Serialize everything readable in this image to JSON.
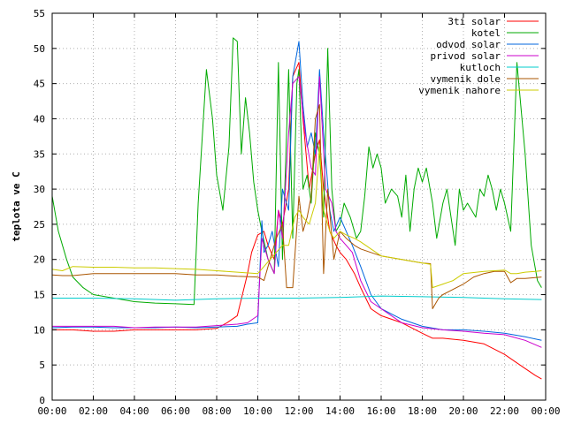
{
  "chart_data": {
    "type": "line",
    "ylabel": "teplota ve C",
    "xlim": [
      0,
      24
    ],
    "ylim": [
      0,
      55
    ],
    "x_ticks": [
      0,
      2,
      4,
      6,
      8,
      10,
      12,
      14,
      16,
      18,
      20,
      22,
      24
    ],
    "x_tick_labels": [
      "00:00",
      "02:00",
      "04:00",
      "06:00",
      "08:00",
      "10:00",
      "12:00",
      "14:00",
      "16:00",
      "18:00",
      "20:00",
      "22:00",
      "00:00"
    ],
    "y_ticks": [
      0,
      5,
      10,
      15,
      20,
      25,
      30,
      35,
      40,
      45,
      50,
      55
    ],
    "y_tick_labels": [
      "0",
      "5",
      "10",
      "15",
      "20",
      "25",
      "30",
      "35",
      "40",
      "45",
      "50",
      "55"
    ],
    "grid": true,
    "legend_position": "top-right",
    "series": [
      {
        "name": "3ti solar",
        "color": "#ff0000",
        "x": [
          0,
          1,
          2,
          3,
          4,
          5,
          6,
          7,
          8,
          8.5,
          9,
          9.5,
          9.7,
          10,
          10.3,
          10.5,
          10.8,
          11,
          11.2,
          11.5,
          11.7,
          12,
          12.2,
          12.5,
          12.8,
          13,
          13.2,
          13.5,
          13.8,
          14,
          14.3,
          14.7,
          15,
          15.5,
          16,
          17,
          18,
          18.5,
          19,
          20,
          21,
          22,
          22.5,
          23,
          23.5,
          23.8
        ],
        "y": [
          10,
          10,
          9.8,
          9.8,
          10,
          10,
          10,
          10,
          10.2,
          11,
          12,
          18,
          21,
          23.5,
          24,
          22,
          20,
          27,
          25,
          30,
          46,
          48,
          40,
          30,
          35,
          37,
          30,
          24,
          22,
          21,
          20,
          18,
          16,
          13,
          12,
          11,
          9.5,
          8.8,
          8.8,
          8.5,
          8,
          6.5,
          5.5,
          4.5,
          3.5,
          3
        ]
      },
      {
        "name": "kotel",
        "color": "#00aa00",
        "x": [
          0,
          0.3,
          0.7,
          1,
          1.5,
          2,
          3,
          4,
          5,
          6,
          6.9,
          7.1,
          7.5,
          7.8,
          8,
          8.3,
          8.6,
          8.8,
          9,
          9.2,
          9.4,
          9.6,
          9.8,
          10,
          10.2,
          10.5,
          10.8,
          11,
          11.2,
          11.5,
          11.7,
          11.9,
          12,
          12.2,
          12.4,
          12.6,
          12.8,
          13,
          13.2,
          13.4,
          13.6,
          13.8,
          14,
          14.2,
          14.5,
          14.8,
          15,
          15.2,
          15.4,
          15.6,
          15.8,
          16,
          16.2,
          16.5,
          16.8,
          17,
          17.2,
          17.4,
          17.6,
          17.8,
          18,
          18.2,
          18.5,
          18.7,
          19,
          19.2,
          19.4,
          19.6,
          19.8,
          20,
          20.2,
          20.4,
          20.6,
          20.8,
          21,
          21.2,
          21.4,
          21.6,
          21.8,
          22,
          22.3,
          22.6,
          23,
          23.3,
          23.6,
          23.8
        ],
        "y": [
          29,
          24,
          20,
          17.5,
          16,
          15,
          14.5,
          14,
          13.8,
          13.7,
          13.6,
          28,
          47,
          40,
          32,
          27,
          36,
          51.5,
          51,
          35,
          43,
          38,
          31,
          27,
          24,
          20,
          18,
          48,
          20,
          47,
          23,
          45,
          47,
          30,
          32,
          28,
          38,
          35,
          26,
          50,
          30,
          24,
          25,
          28,
          26,
          23,
          24,
          29,
          36,
          33,
          35,
          33,
          28,
          30,
          29,
          26,
          32,
          24,
          30,
          33,
          31,
          33,
          28,
          23,
          28,
          30,
          26,
          22,
          30,
          27,
          28,
          27,
          26,
          30,
          29,
          32,
          30,
          27,
          30,
          28,
          24,
          48,
          35,
          22,
          17,
          16
        ]
      },
      {
        "name": "odvod solar",
        "color": "#0066dd",
        "x": [
          0,
          1,
          2,
          3,
          4,
          5,
          6,
          7,
          8,
          9,
          9.5,
          10,
          10.2,
          10.3,
          10.5,
          10.7,
          11,
          11.2,
          11.5,
          11.7,
          12,
          12.2,
          12.4,
          12.6,
          12.8,
          13,
          13.2,
          13.5,
          13.7,
          14,
          14.3,
          14.6,
          15,
          15.5,
          16,
          17,
          18,
          19,
          20,
          21,
          22,
          23,
          23.8
        ],
        "y": [
          10.3,
          10.4,
          10.4,
          10.3,
          10.3,
          10.3,
          10.4,
          10.3,
          10.4,
          10.5,
          10.8,
          11,
          25.5,
          21,
          22,
          24,
          19,
          30,
          27,
          46,
          51,
          42,
          36,
          38,
          35,
          47,
          38,
          27,
          24,
          26,
          24,
          22,
          19,
          15,
          13,
          11.5,
          10.5,
          10,
          10,
          9.8,
          9.5,
          9,
          8.5
        ]
      },
      {
        "name": "privod solar",
        "color": "#cc00cc",
        "x": [
          0,
          1,
          2,
          3,
          4,
          5,
          6,
          7,
          8,
          9,
          9.5,
          10,
          10.2,
          10.5,
          10.8,
          11,
          11.2,
          11.5,
          11.7,
          12,
          12.3,
          12.6,
          12.8,
          13,
          13.3,
          13.6,
          13.8,
          14,
          14.3,
          14.6,
          15,
          15.5,
          16,
          17,
          18,
          19,
          20,
          21,
          22,
          23,
          23.8
        ],
        "y": [
          10.5,
          10.5,
          10.5,
          10.5,
          10.3,
          10.4,
          10.4,
          10.4,
          10.6,
          10.8,
          11,
          12,
          23,
          20,
          18,
          27,
          23,
          38,
          45,
          46,
          38,
          33,
          32,
          46,
          30,
          28,
          24,
          23,
          22,
          21,
          17,
          14,
          13,
          11,
          10.3,
          10,
          9.8,
          9.5,
          9.3,
          8.5,
          7.5
        ]
      },
      {
        "name": "kutloch",
        "color": "#00cccc",
        "x": [
          0,
          2,
          4,
          6,
          8,
          10,
          12,
          14,
          16,
          18,
          20,
          22,
          23.8
        ],
        "y": [
          14.5,
          14.5,
          14.4,
          14.2,
          14.4,
          14.5,
          14.5,
          14.6,
          14.8,
          14.7,
          14.6,
          14.4,
          14.3
        ]
      },
      {
        "name": "vymenik dole",
        "color": "#aa5500",
        "x": [
          0,
          0.5,
          1,
          2,
          3,
          4,
          5,
          6,
          7,
          8,
          9,
          10,
          10.3,
          10.6,
          10.9,
          11.2,
          11.4,
          11.7,
          12,
          12.2,
          12.4,
          12.6,
          12.8,
          13,
          13.2,
          13.4,
          13.7,
          14,
          14.3,
          14.7,
          15,
          15.5,
          16,
          17,
          18,
          18.4,
          18.5,
          18.8,
          19,
          20,
          20.5,
          21,
          21.5,
          22,
          22.3,
          22.6,
          23,
          23.8
        ],
        "y": [
          17.8,
          17.7,
          17.7,
          18,
          18,
          18,
          18,
          18,
          17.8,
          17.8,
          17.6,
          17.5,
          17,
          20,
          23,
          25,
          16,
          16,
          29,
          24,
          26,
          29,
          40,
          42,
          18,
          30,
          20,
          24,
          23,
          22,
          21.5,
          21,
          20.5,
          20,
          19.5,
          19.4,
          13,
          14.5,
          15,
          16.5,
          17.5,
          18,
          18.3,
          18.3,
          16.7,
          17.3,
          17.3,
          17.5
        ]
      },
      {
        "name": "vymenik nahore",
        "color": "#cccc00",
        "x": [
          0,
          0.5,
          1,
          2,
          3,
          4,
          5,
          6,
          7,
          8,
          9,
          10,
          10.3,
          10.6,
          10.9,
          11.2,
          11.5,
          11.8,
          12,
          12.2,
          12.5,
          12.8,
          13,
          13.2,
          13.5,
          13.7,
          14,
          14.3,
          14.7,
          15,
          15.5,
          16,
          17,
          18,
          18.4,
          18.5,
          19,
          19.5,
          20,
          21,
          22,
          22.3,
          22.6,
          23,
          23.5,
          23.8
        ],
        "y": [
          18.6,
          18.4,
          19,
          18.9,
          18.9,
          18.8,
          18.8,
          18.7,
          18.6,
          18.4,
          18.2,
          18,
          19,
          20,
          21,
          22,
          22,
          26,
          27,
          26,
          25,
          28,
          36,
          27,
          24,
          23,
          24,
          23.5,
          23,
          22.5,
          21.5,
          20.5,
          20,
          19.5,
          19.3,
          16,
          16.5,
          17,
          18,
          18.3,
          18.5,
          18,
          18,
          18.2,
          18.3,
          18.4
        ]
      }
    ]
  }
}
